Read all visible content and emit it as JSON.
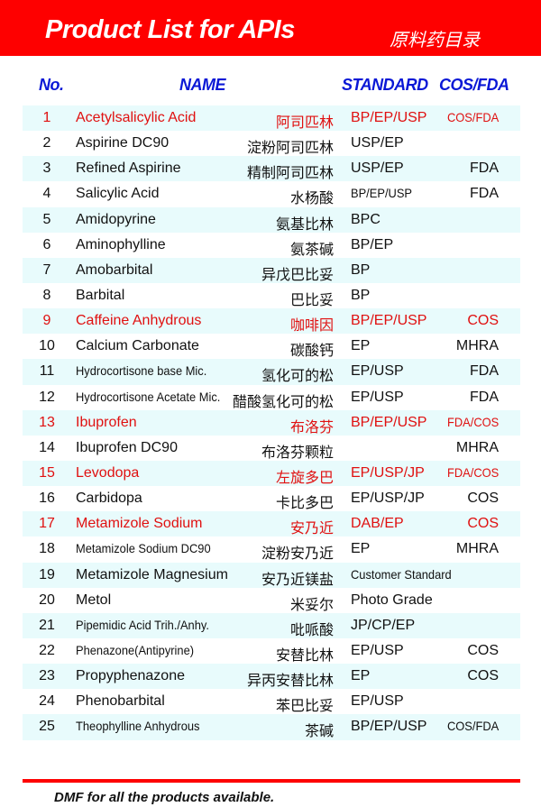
{
  "header": {
    "title": "Product List for APIs",
    "title_cn": "原料药目录"
  },
  "columns": {
    "no": "No.",
    "name": "NAME",
    "standard": "STANDARD",
    "cosfda": "COS/FDA"
  },
  "products": [
    {
      "no": "1",
      "name": "Acetylsalicylic Acid",
      "cn": "阿司匹林",
      "standard": "BP/EP/USP",
      "cosfda": "COS/FDA",
      "highlight": true
    },
    {
      "no": "2",
      "name": "Aspirine DC90",
      "cn": "淀粉阿司匹林",
      "standard": "USP/EP",
      "cosfda": ""
    },
    {
      "no": "3",
      "name": "Refined Aspirine",
      "cn": "精制阿司匹林",
      "standard": "USP/EP",
      "cosfda": "FDA"
    },
    {
      "no": "4",
      "name": "Salicylic Acid",
      "cn": "水杨酸",
      "standard": "BP/EP/USP",
      "cosfda": "FDA"
    },
    {
      "no": "5",
      "name": "Amidopyrine",
      "cn": "氨基比林",
      "standard": "BPC",
      "cosfda": ""
    },
    {
      "no": "6",
      "name": "Aminophylline",
      "cn": "氨茶碱",
      "standard": "BP/EP",
      "cosfda": ""
    },
    {
      "no": "7",
      "name": "Amobarbital",
      "cn": "异戊巴比妥",
      "standard": "BP",
      "cosfda": ""
    },
    {
      "no": "8",
      "name": "Barbital",
      "cn": "巴比妥",
      "standard": "BP",
      "cosfda": ""
    },
    {
      "no": "9",
      "name": "Caffeine Anhydrous",
      "cn": "咖啡因",
      "standard": "BP/EP/USP",
      "cosfda": "COS",
      "highlight": true
    },
    {
      "no": "10",
      "name": "Calcium Carbonate",
      "cn": "碳酸钙",
      "standard": "EP",
      "cosfda": "MHRA"
    },
    {
      "no": "11",
      "name": "Hydrocortisone base Mic.",
      "cn": "氢化可的松",
      "standard": "EP/USP",
      "cosfda": "FDA"
    },
    {
      "no": "12",
      "name": "Hydrocortisone Acetate Mic.",
      "cn": "醋酸氢化可的松",
      "standard": "EP/USP",
      "cosfda": "FDA"
    },
    {
      "no": "13",
      "name": "Ibuprofen",
      "cn": "布洛芬",
      "standard": "BP/EP/USP",
      "cosfda": "FDA/COS",
      "highlight": true
    },
    {
      "no": "14",
      "name": "Ibuprofen DC90",
      "cn": "布洛芬颗粒",
      "standard": "",
      "cosfda": "MHRA"
    },
    {
      "no": "15",
      "name": "Levodopa",
      "cn": "左旋多巴",
      "standard": "EP/USP/JP",
      "cosfda": "FDA/COS",
      "highlight": true
    },
    {
      "no": "16",
      "name": "Carbidopa",
      "cn": "卡比多巴",
      "standard": "EP/USP/JP",
      "cosfda": "COS"
    },
    {
      "no": "17",
      "name": "Metamizole Sodium",
      "cn": "安乃近",
      "standard": "DAB/EP",
      "cosfda": "COS",
      "highlight": true
    },
    {
      "no": "18",
      "name": "Metamizole Sodium DC90",
      "cn": "淀粉安乃近",
      "standard": "EP",
      "cosfda": "MHRA"
    },
    {
      "no": "19",
      "name": "Metamizole Magnesium",
      "cn": "安乃近镁盐",
      "standard": "Customer Standard",
      "cosfda": ""
    },
    {
      "no": "20",
      "name": "Metol",
      "cn": "米妥尔",
      "standard": "Photo Grade",
      "cosfda": ""
    },
    {
      "no": "21",
      "name": "Pipemidic Acid Trih./Anhy.",
      "cn": "吡哌酸",
      "standard": "JP/CP/EP",
      "cosfda": ""
    },
    {
      "no": "22",
      "name": "Phenazone(Antipyrine)",
      "cn": "安替比林",
      "standard": "EP/USP",
      "cosfda": "COS"
    },
    {
      "no": "23",
      "name": "Propyphenazone",
      "cn": "异丙安替比林",
      "standard": "EP",
      "cosfda": "COS"
    },
    {
      "no": "24",
      "name": "Phenobarbital",
      "cn": "苯巴比妥",
      "standard": "EP/USP",
      "cosfda": ""
    },
    {
      "no": "25",
      "name": "Theophylline Anhydrous",
      "cn": "茶碱",
      "standard": "BP/EP/USP",
      "cosfda": "COS/FDA"
    }
  ],
  "footer": "DMF for all the products available.",
  "colors": {
    "banner": "#fe0000",
    "header_text": "#0a18d6",
    "highlight": "#e01010",
    "row_shade": "#e8fbfc"
  }
}
